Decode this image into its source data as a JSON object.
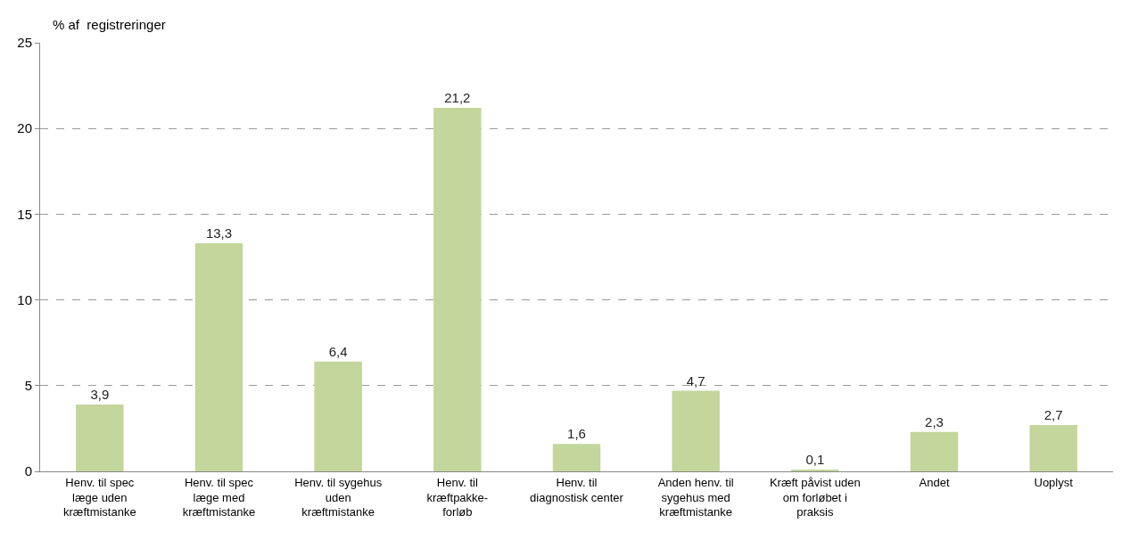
{
  "chart_data": {
    "type": "bar",
    "ylabel": "% af  registreringer",
    "categories": [
      "Henv. til spec\nlæge uden\nkræftmistanke",
      "Henv. til spec\nlæge med\nkræftmistanke",
      "Henv. til sygehus\nuden\nkræftmistanke",
      "Henv. til\nkræftpakke-\nforløb",
      "Henv. til\ndiagnostisk center",
      "Anden henv. til\nsygehus med\nkræftmistanke",
      "Kræft påvist uden\nom forløbet i\npraksis",
      "Andet",
      "Uoplyst"
    ],
    "values": [
      3.9,
      13.3,
      6.4,
      21.2,
      1.6,
      4.7,
      0.1,
      2.3,
      2.7
    ],
    "value_labels": [
      "3,9",
      "13,3",
      "6,4",
      "21,2",
      "1,6",
      "4,7",
      "0,1",
      "2,3",
      "2,7"
    ],
    "color": "#c3d69b",
    "ylim": [
      0,
      25
    ],
    "yticks": [
      0,
      5,
      10,
      15,
      20,
      25
    ],
    "grid": "y"
  }
}
